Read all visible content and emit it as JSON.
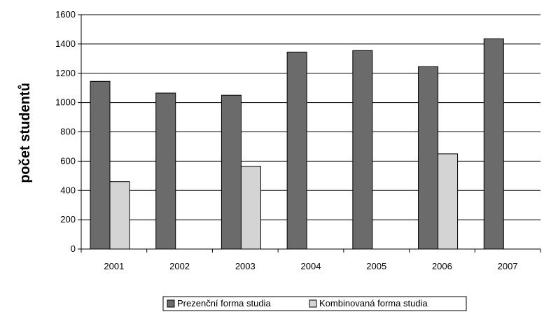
{
  "chart_data": {
    "type": "bar",
    "categories": [
      "2001",
      "2002",
      "2003",
      "2004",
      "2005",
      "2006",
      "2007"
    ],
    "series": [
      {
        "name": "Prezenční forma studia",
        "values": [
          1145,
          1065,
          1050,
          1345,
          1355,
          1245,
          1435
        ],
        "color": "#6b6b6b"
      },
      {
        "name": "Kombinovaná forma studia",
        "values": [
          460,
          null,
          565,
          null,
          null,
          650,
          null
        ],
        "color": "#d4d4d4"
      }
    ],
    "title": "",
    "xlabel": "",
    "ylabel": "počet studentů",
    "ylim": [
      0,
      1600
    ],
    "yticks": [
      0,
      200,
      400,
      600,
      800,
      1000,
      1200,
      1400,
      1600
    ],
    "grid": true,
    "legend_placement": "bottom"
  }
}
